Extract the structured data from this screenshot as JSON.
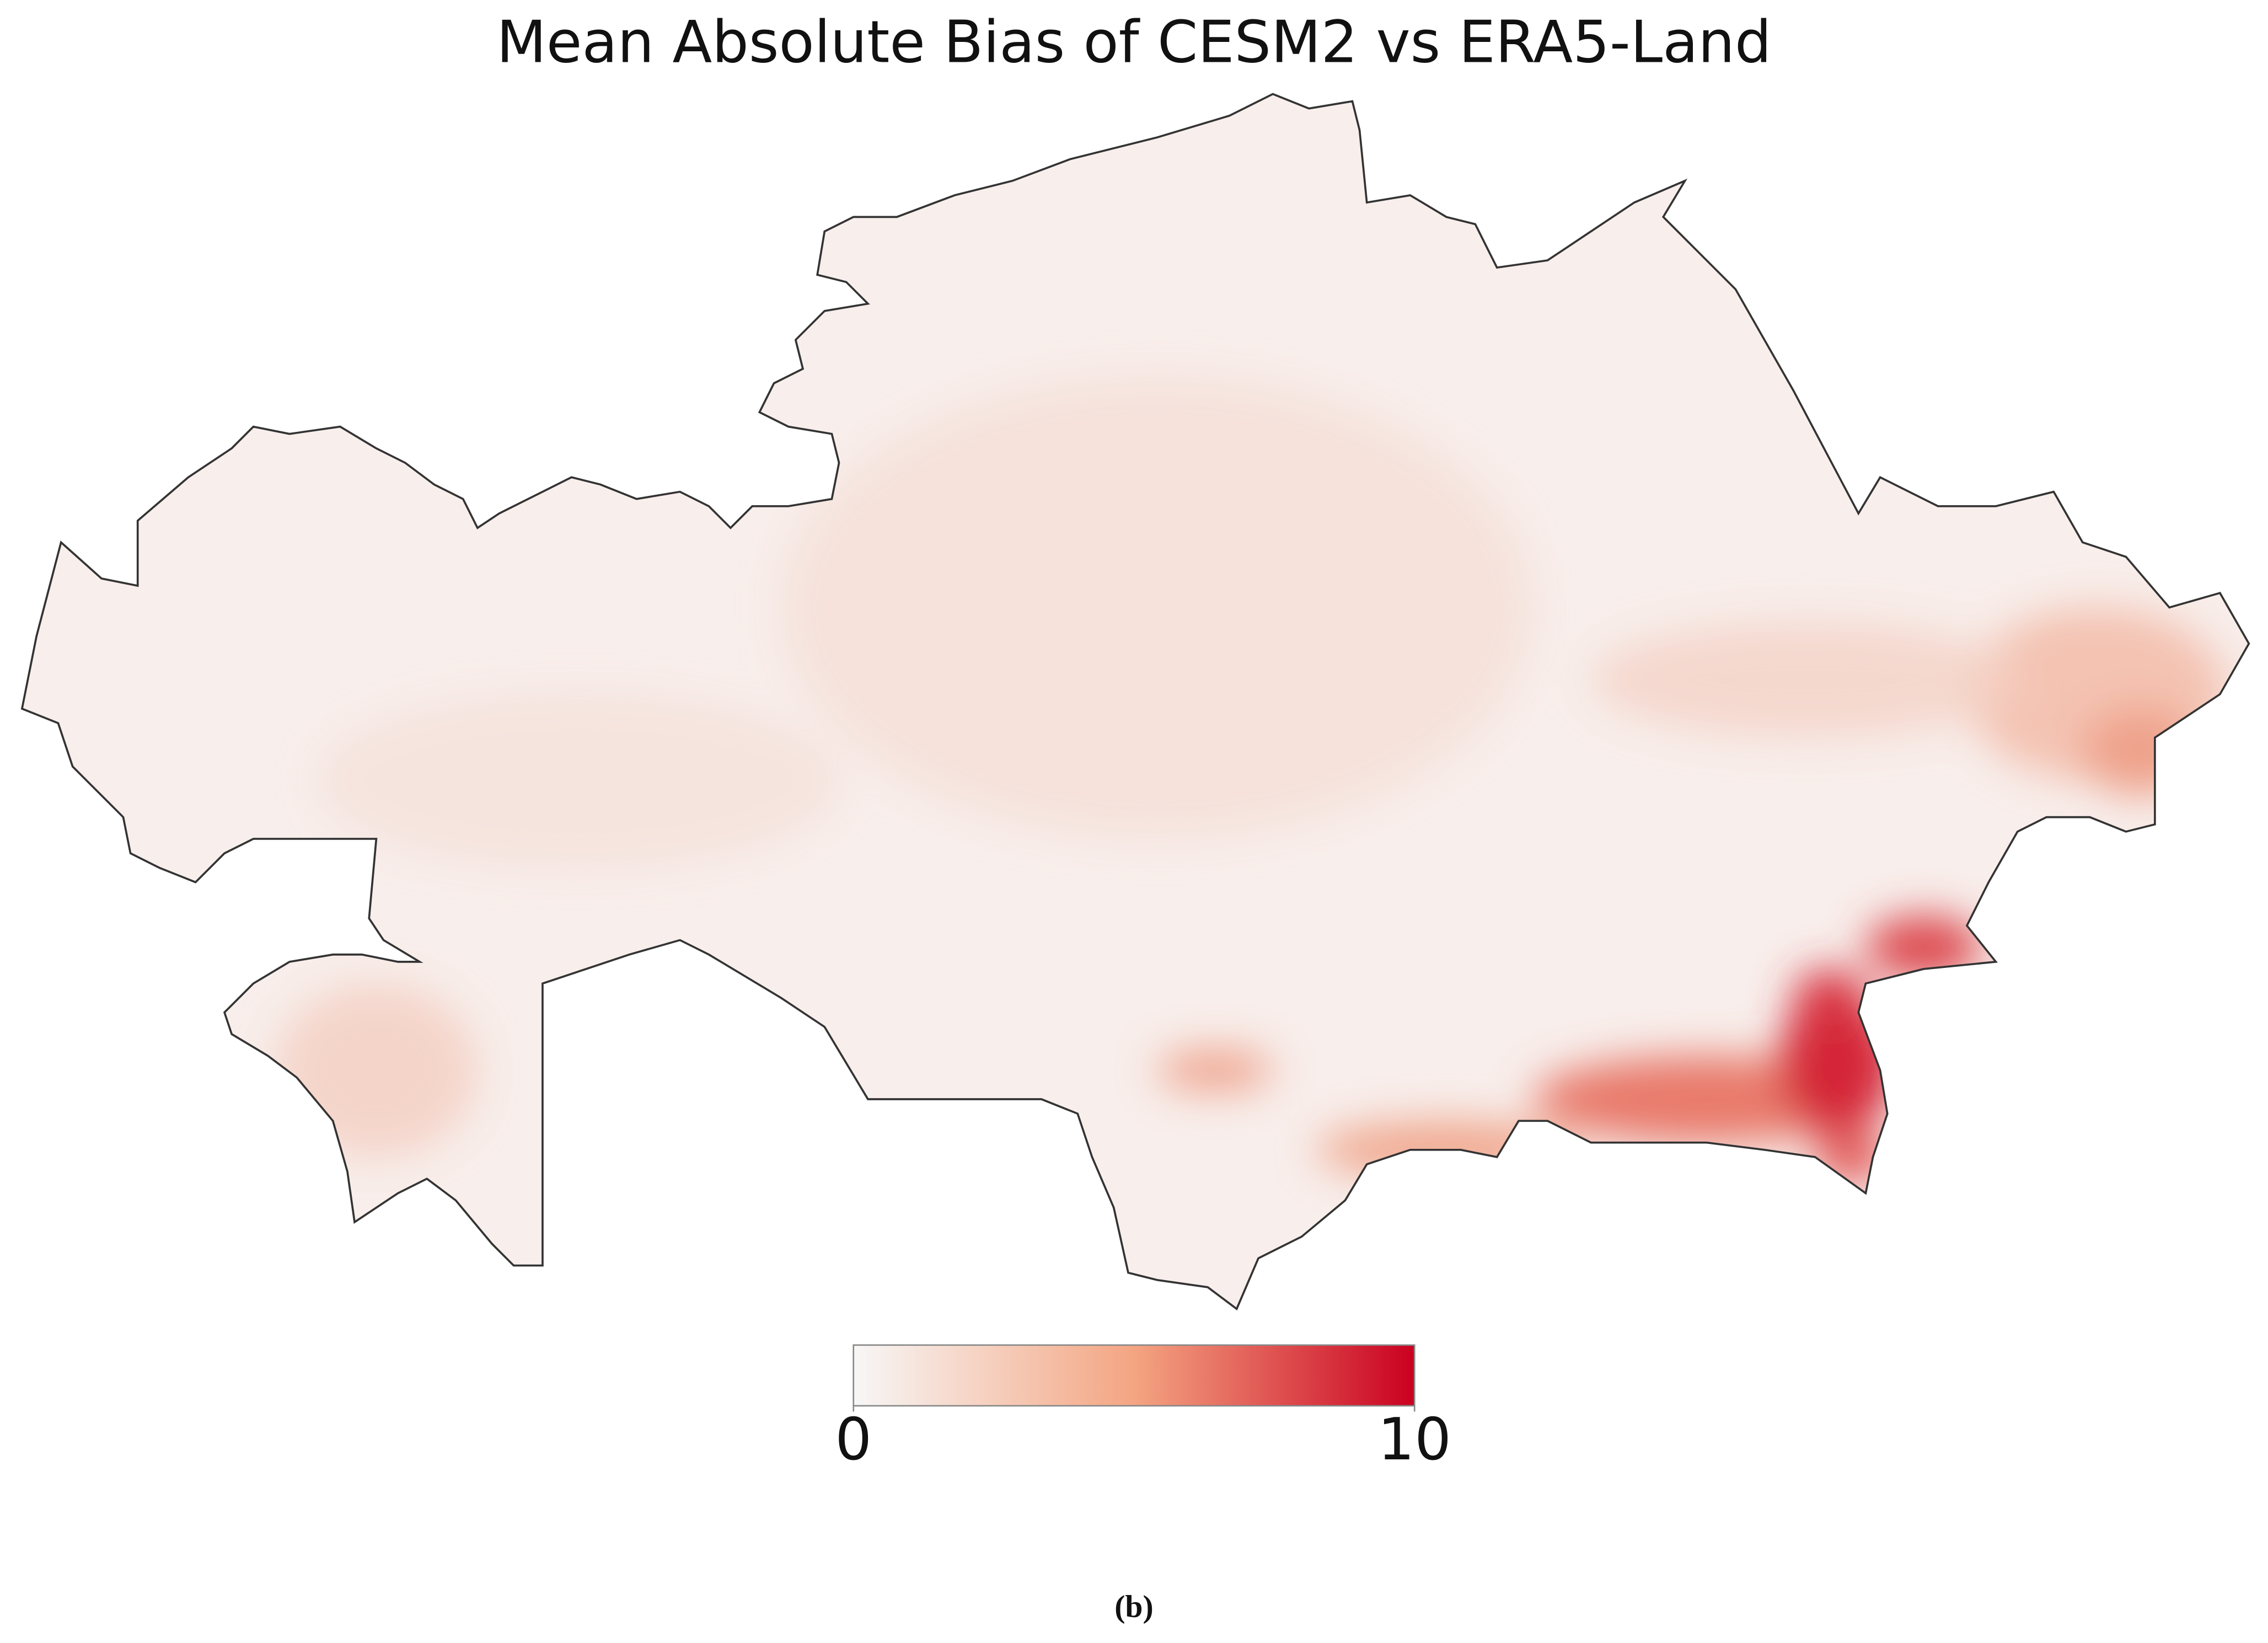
{
  "title": "Mean Absolute Bias of CESM2 vs ERA5-Land",
  "colorbar": {
    "lim": [
      0,
      10
    ],
    "ticks": [
      0,
      10
    ],
    "colors": [
      "#f7f7f7",
      "#f4a582",
      "#ca0020"
    ]
  },
  "caption": "(b)"
}
